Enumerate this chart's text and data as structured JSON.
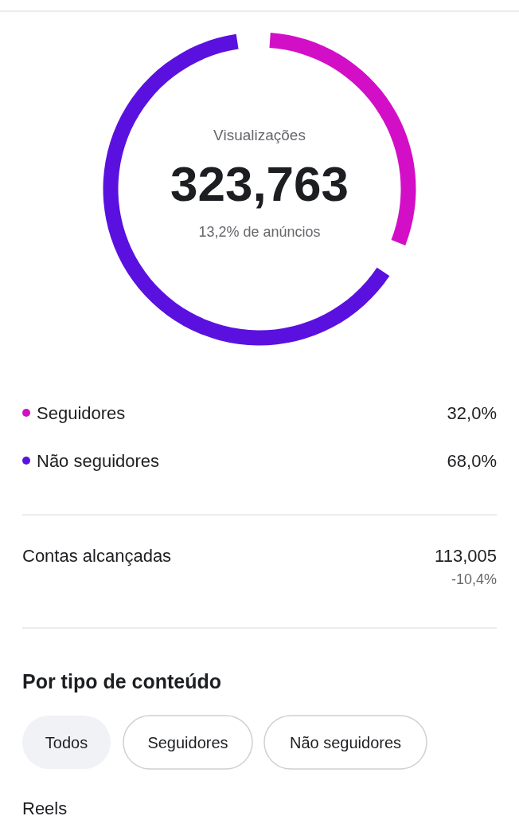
{
  "chart_data": {
    "type": "donut",
    "title": "Visualizações",
    "categories": [
      "Seguidores",
      "Não seguidores"
    ],
    "values": [
      32.0,
      68.0
    ],
    "colors": [
      "#d20fc6",
      "#5a11e0"
    ],
    "value_labels": [
      "32,0%",
      "68,0%"
    ],
    "legend": "bottom",
    "annotations": [
      "323,763",
      "13,2% de anúncios",
      "Contas alcançadas",
      "113,005",
      "-10,4%",
      "Por tipo de conteúdo",
      "Todos",
      "Seguidores",
      "Não seguidores",
      "Reels"
    ]
  }
}
